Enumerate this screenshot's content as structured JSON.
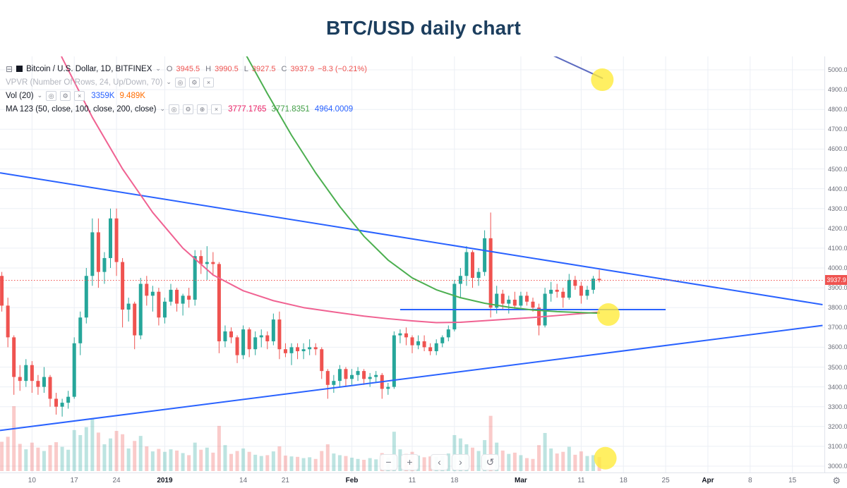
{
  "page": {
    "title": "BTC/USD daily chart"
  },
  "icons": {
    "collapse": "⊟",
    "chevron_down": "⌄",
    "eye": "◎",
    "settings": "⚙",
    "close": "×",
    "more": "⊕",
    "gear": "⚙"
  },
  "legend": {
    "symbol": "Bitcoin / U.S. Dollar, 1D, BITFINEX",
    "ohlc": {
      "o_key": "O",
      "o_val": "3945.5",
      "h_key": "H",
      "h_val": "3990.5",
      "l_key": "L",
      "l_val": "3927.5",
      "c_key": "C",
      "c_val": "3937.9",
      "change": "−8.3 (−0.21%)"
    },
    "vpvr_label": "VPVR (Number Of Rows, 24, Up/Down, 70)",
    "vol_label": "Vol (20)",
    "vol_value": "3359K",
    "vol_ma_value": "9.489K",
    "ma_label": "MA 123 (50, close, 100, close, 200, close)",
    "ma50_value": "3777.1765",
    "ma100_value": "3771.8351",
    "ma200_value": "4964.0009"
  },
  "toolbar": {
    "zoom_out": "−",
    "zoom_in": "+",
    "scroll_left": "‹",
    "scroll_right": "›",
    "reset": "↺"
  },
  "chart_data": {
    "type": "candlestick",
    "title": "BTC/USD daily chart",
    "symbol": "Bitcoin / U.S. Dollar",
    "interval": "1D",
    "exchange": "BITFINEX",
    "last_price": 3937.9,
    "last_price_label": "3937.9",
    "ohlc_display": {
      "open": 3945.5,
      "high": 3990.5,
      "low": 3927.5,
      "close": 3937.9,
      "change": -8.3,
      "change_pct": -0.21
    },
    "colors": {
      "up": "#26a69a",
      "down": "#ef5350",
      "vol_up": "rgba(38,166,154,0.30)",
      "vol_down": "rgba(239,83,80,0.30)",
      "trendline": "#2962ff",
      "highlight": "rgba(255,235,59,0.8)",
      "grid": "#eceff5",
      "title": "#1c3e5e",
      "last_price": "#ef5350"
    },
    "y_axis": {
      "min": 3000,
      "max": 5000,
      "step": 100
    },
    "x_axis": {
      "start_date": "2018-12-05",
      "ticks": [
        {
          "label": "10",
          "day": 5
        },
        {
          "label": "17",
          "day": 12
        },
        {
          "label": "24",
          "day": 19
        },
        {
          "label": "2019",
          "day": 27,
          "major": true
        },
        {
          "label": "14",
          "day": 40
        },
        {
          "label": "21",
          "day": 47
        },
        {
          "label": "Feb",
          "day": 58,
          "major": true
        },
        {
          "label": "11",
          "day": 68
        },
        {
          "label": "18",
          "day": 75
        },
        {
          "label": "Mar",
          "day": 86,
          "major": true
        },
        {
          "label": "11",
          "day": 96
        },
        {
          "label": "18",
          "day": 103
        },
        {
          "label": "25",
          "day": 110
        },
        {
          "label": "Apr",
          "day": 117,
          "major": true
        },
        {
          "label": "8",
          "day": 124
        },
        {
          "label": "15",
          "day": 131
        }
      ]
    },
    "candles": [
      [
        3960,
        3980,
        3780,
        3810
      ],
      [
        3810,
        3850,
        3600,
        3650
      ],
      [
        3650,
        3660,
        3360,
        3450
      ],
      [
        3450,
        3510,
        3380,
        3430
      ],
      [
        3430,
        3540,
        3400,
        3510
      ],
      [
        3510,
        3530,
        3370,
        3430
      ],
      [
        3430,
        3460,
        3360,
        3400
      ],
      [
        3400,
        3500,
        3370,
        3450
      ],
      [
        3450,
        3460,
        3300,
        3340
      ],
      [
        3340,
        3370,
        3260,
        3300
      ],
      [
        3300,
        3340,
        3250,
        3320
      ],
      [
        3320,
        3380,
        3290,
        3350
      ],
      [
        3350,
        3650,
        3340,
        3620
      ],
      [
        3620,
        3780,
        3560,
        3750
      ],
      [
        3750,
        4000,
        3720,
        3960
      ],
      [
        3960,
        4250,
        3910,
        4180
      ],
      [
        4180,
        4250,
        3900,
        3980
      ],
      [
        3980,
        4080,
        3920,
        4050
      ],
      [
        4050,
        4300,
        4000,
        4250
      ],
      [
        4250,
        4300,
        3960,
        4030
      ],
      [
        4030,
        4050,
        3700,
        3790
      ],
      [
        3790,
        3850,
        3730,
        3820
      ],
      [
        3820,
        3830,
        3590,
        3660
      ],
      [
        3660,
        3950,
        3640,
        3920
      ],
      [
        3920,
        3960,
        3810,
        3860
      ],
      [
        3860,
        3910,
        3780,
        3880
      ],
      [
        3880,
        3900,
        3710,
        3750
      ],
      [
        3750,
        3850,
        3720,
        3830
      ],
      [
        3830,
        3920,
        3810,
        3890
      ],
      [
        3890,
        3900,
        3780,
        3820
      ],
      [
        3820,
        3870,
        3760,
        3860
      ],
      [
        3860,
        3900,
        3800,
        3840
      ],
      [
        3840,
        4090,
        3810,
        4060
      ],
      [
        4060,
        4090,
        3970,
        4020
      ],
      [
        4020,
        4110,
        3940,
        4030
      ],
      [
        4030,
        4080,
        3960,
        4020
      ],
      [
        4020,
        4030,
        3570,
        3630
      ],
      [
        3630,
        3710,
        3600,
        3680
      ],
      [
        3680,
        3700,
        3620,
        3650
      ],
      [
        3650,
        3660,
        3520,
        3560
      ],
      [
        3560,
        3710,
        3540,
        3690
      ],
      [
        3690,
        3700,
        3550,
        3590
      ],
      [
        3590,
        3680,
        3560,
        3650
      ],
      [
        3650,
        3690,
        3600,
        3660
      ],
      [
        3660,
        3680,
        3590,
        3630
      ],
      [
        3630,
        3770,
        3610,
        3740
      ],
      [
        3740,
        3780,
        3540,
        3590
      ],
      [
        3590,
        3620,
        3550,
        3570
      ],
      [
        3570,
        3620,
        3510,
        3600
      ],
      [
        3600,
        3620,
        3540,
        3580
      ],
      [
        3580,
        3620,
        3540,
        3590
      ],
      [
        3590,
        3640,
        3560,
        3600
      ],
      [
        3600,
        3620,
        3560,
        3590
      ],
      [
        3590,
        3600,
        3440,
        3480
      ],
      [
        3480,
        3490,
        3340,
        3410
      ],
      [
        3410,
        3460,
        3370,
        3430
      ],
      [
        3430,
        3510,
        3400,
        3490
      ],
      [
        3490,
        3500,
        3400,
        3440
      ],
      [
        3440,
        3490,
        3410,
        3460
      ],
      [
        3460,
        3500,
        3430,
        3480
      ],
      [
        3480,
        3490,
        3410,
        3440
      ],
      [
        3440,
        3470,
        3400,
        3450
      ],
      [
        3450,
        3480,
        3420,
        3460
      ],
      [
        3460,
        3470,
        3340,
        3390
      ],
      [
        3390,
        3420,
        3360,
        3400
      ],
      [
        3400,
        3680,
        3390,
        3660
      ],
      [
        3660,
        3690,
        3620,
        3670
      ],
      [
        3670,
        3700,
        3610,
        3650
      ],
      [
        3650,
        3660,
        3570,
        3610
      ],
      [
        3610,
        3660,
        3590,
        3630
      ],
      [
        3630,
        3660,
        3580,
        3600
      ],
      [
        3600,
        3620,
        3560,
        3580
      ],
      [
        3580,
        3640,
        3560,
        3620
      ],
      [
        3620,
        3660,
        3600,
        3650
      ],
      [
        3650,
        3710,
        3630,
        3690
      ],
      [
        3690,
        3940,
        3680,
        3920
      ],
      [
        3920,
        4000,
        3850,
        3960
      ],
      [
        3960,
        4110,
        3910,
        4080
      ],
      [
        4080,
        4090,
        3900,
        3950
      ],
      [
        3950,
        4000,
        3910,
        3980
      ],
      [
        3980,
        4190,
        3960,
        4150
      ],
      [
        4150,
        4280,
        3750,
        3800
      ],
      [
        3800,
        3910,
        3770,
        3870
      ],
      [
        3870,
        3890,
        3790,
        3820
      ],
      [
        3820,
        3860,
        3770,
        3840
      ],
      [
        3840,
        3880,
        3790,
        3810
      ],
      [
        3810,
        3880,
        3800,
        3860
      ],
      [
        3860,
        3880,
        3810,
        3830
      ],
      [
        3830,
        3850,
        3780,
        3800
      ],
      [
        3800,
        3820,
        3660,
        3710
      ],
      [
        3710,
        3900,
        3700,
        3870
      ],
      [
        3870,
        3930,
        3830,
        3890
      ],
      [
        3890,
        3920,
        3850,
        3880
      ],
      [
        3880,
        3900,
        3800,
        3850
      ],
      [
        3850,
        3970,
        3840,
        3940
      ],
      [
        3940,
        3960,
        3890,
        3910
      ],
      [
        3910,
        3930,
        3820,
        3860
      ],
      [
        3860,
        3910,
        3840,
        3890
      ],
      [
        3890,
        3960,
        3870,
        3946.2
      ],
      [
        3945.5,
        3990.5,
        3927.5,
        3937.9
      ]
    ],
    "volumes_k": [
      7000,
      8200,
      15500,
      6500,
      5200,
      6800,
      5600,
      4800,
      6200,
      6900,
      5800,
      5100,
      9800,
      8600,
      10500,
      12400,
      9200,
      6400,
      7800,
      9600,
      8800,
      5400,
      7200,
      8400,
      5900,
      4700,
      5300,
      4600,
      5200,
      4900,
      4300,
      3800,
      6800,
      5100,
      5600,
      4400,
      10800,
      6200,
      4100,
      4800,
      5400,
      4600,
      3900,
      3600,
      3800,
      4700,
      5900,
      3700,
      3500,
      3400,
      3100,
      3300,
      2900,
      4800,
      6400,
      4200,
      3800,
      3600,
      3200,
      2900,
      2700,
      3100,
      2800,
      4300,
      3200,
      9400,
      5200,
      4100,
      4600,
      3700,
      3300,
      3500,
      3400,
      3600,
      4200,
      8600,
      7800,
      6400,
      5600,
      4800,
      7400,
      13200,
      6800,
      4900,
      4100,
      4400,
      3800,
      3100,
      2900,
      6200,
      9100,
      5400,
      4200,
      4600,
      5800,
      3900,
      4700,
      3600,
      3800,
      3359
    ],
    "indicators": {
      "ma_overlays": [
        {
          "name": "MA 50",
          "value": 3777.1765,
          "color": "#f06292",
          "points": [
            [
              0,
              5750
            ],
            [
              5,
              5400
            ],
            [
              10,
              5060
            ],
            [
              15,
              4760
            ],
            [
              20,
              4500
            ],
            [
              25,
              4280
            ],
            [
              30,
              4100
            ],
            [
              35,
              3965
            ],
            [
              40,
              3885
            ],
            [
              45,
              3835
            ],
            [
              50,
              3800
            ],
            [
              55,
              3778
            ],
            [
              60,
              3757
            ],
            [
              64,
              3744
            ],
            [
              68,
              3733
            ],
            [
              72,
              3724
            ],
            [
              76,
              3726
            ],
            [
              80,
              3734
            ],
            [
              84,
              3742
            ],
            [
              88,
              3750
            ],
            [
              92,
              3760
            ],
            [
              96,
              3770
            ],
            [
              99,
              3777
            ]
          ]
        },
        {
          "name": "MA 100",
          "value": 3771.8351,
          "color": "#4caf50",
          "points": [
            [
              36,
              5600
            ],
            [
              40,
              5100
            ],
            [
              44,
              4880
            ],
            [
              48,
              4670
            ],
            [
              52,
              4480
            ],
            [
              56,
              4310
            ],
            [
              60,
              4160
            ],
            [
              64,
              4040
            ],
            [
              68,
              3950
            ],
            [
              72,
              3890
            ],
            [
              76,
              3850
            ],
            [
              80,
              3822
            ],
            [
              84,
              3802
            ],
            [
              88,
              3788
            ],
            [
              92,
              3780
            ],
            [
              96,
              3775
            ],
            [
              99,
              3772
            ]
          ]
        },
        {
          "name": "MA 200",
          "value": 4964.0009,
          "color": "#5c6bc0",
          "points": [
            [
              91.5,
              5070
            ],
            [
              99.5,
              4958
            ]
          ]
        }
      ]
    },
    "drawings": {
      "trendlines": [
        {
          "name": "descending-resistance",
          "from": [
            -0.3,
            4480
          ],
          "to": [
            136,
            3815
          ]
        },
        {
          "name": "ascending-support",
          "from": [
            -0.3,
            3180
          ],
          "to": [
            136,
            3710
          ]
        },
        {
          "name": "horizontal-level",
          "from": [
            66,
            3790
          ],
          "to": [
            110,
            3790
          ]
        }
      ],
      "highlights": [
        {
          "day": 99.5,
          "price": 4950,
          "r": 16
        },
        {
          "day": 100.5,
          "price": 3765,
          "r": 16
        },
        {
          "day": 100,
          "price": 3040,
          "r": 16
        }
      ]
    }
  }
}
